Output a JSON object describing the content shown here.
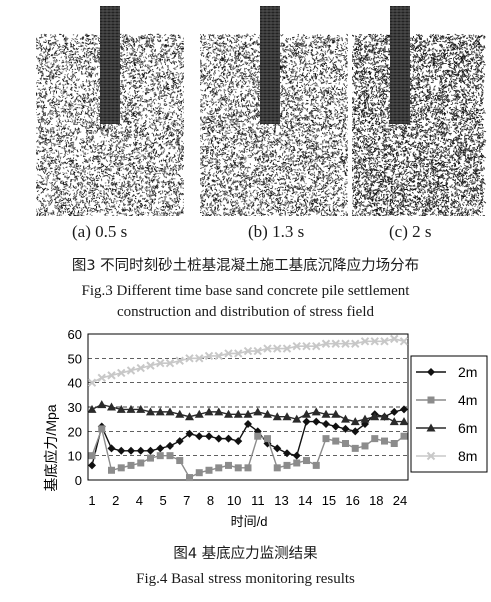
{
  "figure3": {
    "panels": [
      {
        "label": "(a) 0.5 s"
      },
      {
        "label": "(b) 1.3 s"
      },
      {
        "label": "(c) 2 s"
      }
    ],
    "caption_cn": "图3 不同时刻砂土桩基混凝土施工基底沉降应力场分布",
    "caption_en_line1": "Fig.3 Different time base sand concrete pile settlement",
    "caption_en_line2": "construction and distribution of stress field"
  },
  "figure4": {
    "caption_cn": "图4 基底应力监测结果",
    "caption_en": "Fig.4 Basal stress monitoring results"
  },
  "chart_data": {
    "type": "line",
    "xlabel": "时间/d",
    "ylabel": "基底应力/Mpa",
    "ylim": [
      0,
      60
    ],
    "yticks": [
      0,
      10,
      20,
      30,
      40,
      50,
      60
    ],
    "x_ticklabels": [
      "1",
      "2",
      "4",
      "5",
      "7",
      "8",
      "10",
      "11",
      "13",
      "14",
      "15",
      "16",
      "18",
      "24"
    ],
    "grid": "dashed horizontal",
    "legend_position": "right",
    "series": [
      {
        "name": "2m",
        "marker": "diamond",
        "color": "#111111",
        "values": [
          6,
          22,
          13,
          12,
          12,
          12,
          12,
          13,
          14,
          16,
          19,
          18,
          18,
          17,
          17,
          16,
          23,
          20,
          15,
          13,
          11,
          10,
          24,
          24,
          23,
          22,
          21,
          20,
          23,
          27,
          26,
          28,
          29
        ]
      },
      {
        "name": "4m",
        "marker": "square",
        "color": "#8c8c8c",
        "values": [
          10,
          21,
          4,
          5,
          6,
          7,
          9,
          10,
          10,
          8,
          1,
          3,
          4,
          5,
          6,
          5,
          5,
          18,
          17,
          5,
          6,
          7,
          8,
          6,
          17,
          16,
          15,
          13,
          14,
          17,
          16,
          15,
          18
        ]
      },
      {
        "name": "6m",
        "marker": "triangle",
        "color": "#2a2a2a",
        "values": [
          29,
          31,
          30,
          29,
          29,
          29,
          28,
          28,
          28,
          27,
          26,
          27,
          28,
          28,
          27,
          27,
          27,
          28,
          27,
          26,
          26,
          25,
          27,
          28,
          27,
          27,
          25,
          24,
          25,
          26,
          26,
          24,
          24
        ]
      },
      {
        "name": "8m",
        "marker": "x",
        "color": "#c8c8c8",
        "values": [
          40,
          42,
          43,
          44,
          45,
          46,
          47,
          48,
          48,
          49,
          50,
          50,
          51,
          51,
          52,
          52,
          53,
          53,
          54,
          54,
          54,
          55,
          55,
          55,
          56,
          56,
          56,
          56,
          57,
          57,
          57,
          58,
          57
        ]
      }
    ]
  }
}
